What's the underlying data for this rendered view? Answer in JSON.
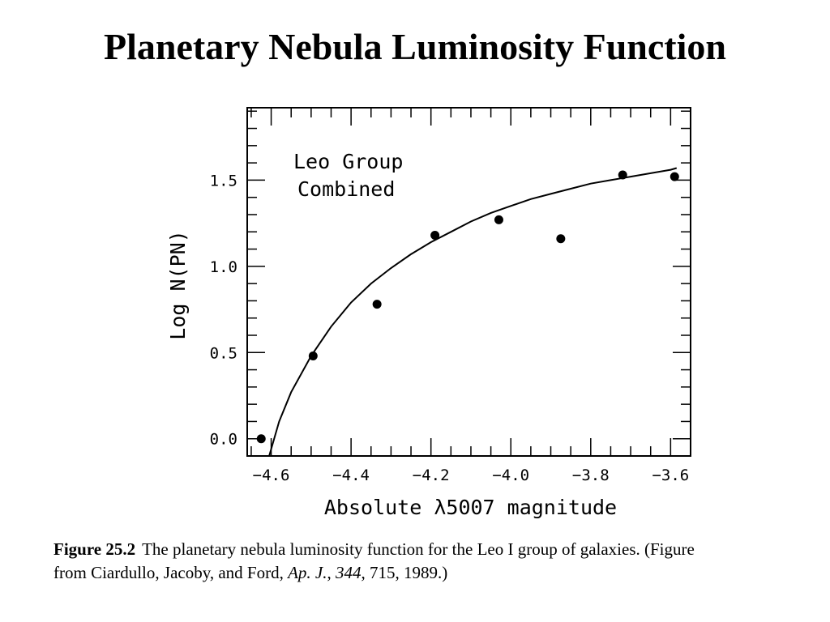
{
  "slide": {
    "title": "Planetary Nebula Luminosity Function"
  },
  "caption": {
    "figure_label": "Figure 25.2",
    "text_main": "The planetary nebula luminosity function for the Leo I group of galaxies. (Figure from Ciardullo, Jacoby, and Ford, ",
    "journal": "Ap. J.",
    "sep1": ", ",
    "volume": "344",
    "text_end": ", 715, 1989.)"
  },
  "chart_data": {
    "type": "scatter",
    "title": "",
    "annotation": [
      "Leo Group",
      "Combined"
    ],
    "xlabel": "Absolute λ5007 magnitude",
    "ylabel": "Log N(PN)",
    "xlim": [
      -4.66,
      -3.55
    ],
    "ylim": [
      -0.1,
      1.92
    ],
    "x_major_ticks": [
      -4.6,
      -4.4,
      -4.2,
      -4.0,
      -3.8,
      -3.6
    ],
    "x_tick_labels": [
      "−4.6",
      "−4.4",
      "−4.2",
      "−4.0",
      "−3.8",
      "−3.6"
    ],
    "y_major_ticks": [
      0.0,
      0.5,
      1.0,
      1.5
    ],
    "y_tick_labels": [
      "0.0",
      "0.5",
      "1.0",
      "1.5"
    ],
    "grid": false,
    "series": [
      {
        "kind": "points",
        "x": [
          -4.625,
          -4.495,
          -4.335,
          -4.19,
          -4.03,
          -3.875,
          -3.72,
          -3.59
        ],
        "y": [
          0.0,
          0.48,
          0.78,
          1.18,
          1.27,
          1.16,
          1.53,
          1.52
        ]
      },
      {
        "kind": "curve",
        "x": [
          -4.605,
          -4.58,
          -4.55,
          -4.5,
          -4.45,
          -4.4,
          -4.35,
          -4.3,
          -4.25,
          -4.2,
          -4.15,
          -4.1,
          -4.05,
          -4.0,
          -3.95,
          -3.9,
          -3.85,
          -3.8,
          -3.75,
          -3.7,
          -3.65,
          -3.6,
          -3.585
        ],
        "y": [
          -0.1,
          0.1,
          0.27,
          0.48,
          0.65,
          0.79,
          0.9,
          0.99,
          1.07,
          1.14,
          1.2,
          1.26,
          1.31,
          1.35,
          1.39,
          1.42,
          1.45,
          1.48,
          1.5,
          1.52,
          1.54,
          1.56,
          1.57
        ]
      }
    ],
    "colors": {
      "ink": "#000000"
    }
  }
}
